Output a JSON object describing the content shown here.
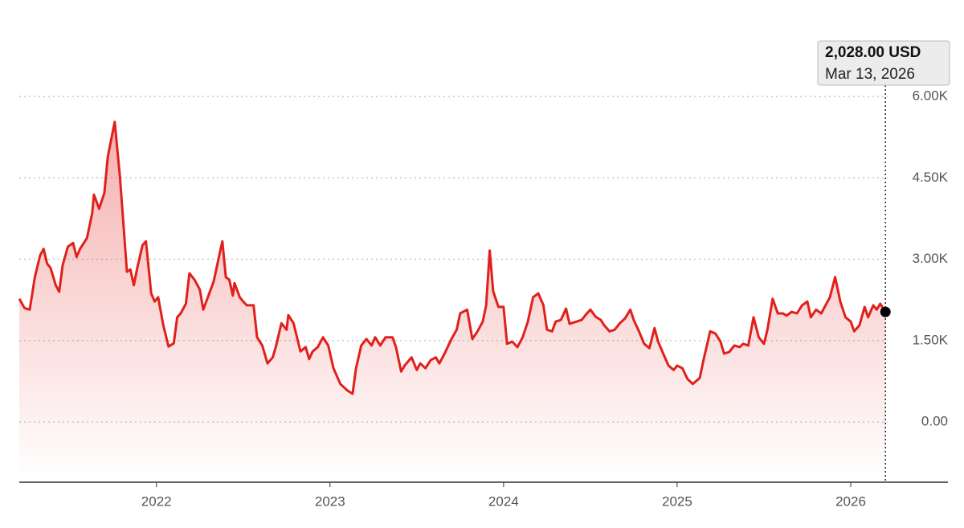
{
  "chart_data": {
    "type": "line",
    "x": [
      2021.21,
      2021.24,
      2021.27,
      2021.3,
      2021.33,
      2021.35,
      2021.37,
      2021.39,
      2021.42,
      2021.44,
      2021.46,
      2021.49,
      2021.52,
      2021.54,
      2021.56,
      2021.6,
      2021.63,
      2021.64,
      2021.67,
      2021.7,
      2021.72,
      2021.76,
      2021.79,
      2021.83,
      2021.85,
      2021.87,
      2021.89,
      2021.92,
      2021.94,
      2021.97,
      2021.99,
      2022.01,
      2022.04,
      2022.07,
      2022.1,
      2022.12,
      2022.14,
      2022.17,
      2022.19,
      2022.22,
      2022.25,
      2022.27,
      2022.3,
      2022.33,
      2022.36,
      2022.38,
      2022.4,
      2022.42,
      2022.44,
      2022.45,
      2022.48,
      2022.5,
      2022.52,
      2022.56,
      2022.58,
      2022.61,
      2022.64,
      2022.67,
      2022.69,
      2022.72,
      2022.75,
      2022.76,
      2022.79,
      2022.81,
      2022.83,
      2022.86,
      2022.88,
      2022.9,
      2022.93,
      2022.96,
      2022.99,
      2023.02,
      2023.06,
      2023.1,
      2023.13,
      2023.15,
      2023.18,
      2023.21,
      2023.24,
      2023.26,
      2023.29,
      2023.32,
      2023.36,
      2023.38,
      2023.41,
      2023.43,
      2023.47,
      2023.5,
      2023.52,
      2023.55,
      2023.58,
      2023.61,
      2023.63,
      2023.66,
      2023.7,
      2023.73,
      2023.75,
      2023.79,
      2023.82,
      2023.85,
      2023.88,
      2023.9,
      2023.92,
      2023.94,
      2023.97,
      2024.0,
      2024.02,
      2024.05,
      2024.08,
      2024.11,
      2024.14,
      2024.17,
      2024.2,
      2024.23,
      2024.25,
      2024.28,
      2024.3,
      2024.33,
      2024.36,
      2024.38,
      2024.42,
      2024.45,
      2024.48,
      2024.5,
      2024.53,
      2024.56,
      2024.58,
      2024.61,
      2024.64,
      2024.67,
      2024.7,
      2024.73,
      2024.75,
      2024.78,
      2024.81,
      2024.84,
      2024.87,
      2024.89,
      2024.92,
      2024.95,
      2024.98,
      2025.0,
      2025.03,
      2025.06,
      2025.09,
      2025.13,
      2025.15,
      2025.19,
      2025.22,
      2025.25,
      2025.27,
      2025.3,
      2025.33,
      2025.36,
      2025.38,
      2025.41,
      2025.44,
      2025.47,
      2025.5,
      2025.52,
      2025.55,
      2025.58,
      2025.61,
      2025.63,
      2025.66,
      2025.69,
      2025.72,
      2025.75,
      2025.77,
      2025.8,
      2025.83,
      2025.86,
      2025.88,
      2025.91,
      2025.94,
      2025.97,
      2026.0,
      2026.02,
      2026.05,
      2026.08,
      2026.1,
      2026.13,
      2026.15,
      2026.17,
      2026.2
    ],
    "series": [
      {
        "color": "#e0201b",
        "values": [
          2270,
          2100,
          2070,
          2670,
          3070,
          3190,
          2920,
          2840,
          2520,
          2400,
          2890,
          3230,
          3300,
          3040,
          3190,
          3390,
          3850,
          4190,
          3930,
          4220,
          4890,
          5530,
          4520,
          2770,
          2810,
          2520,
          2840,
          3260,
          3330,
          2370,
          2220,
          2300,
          1780,
          1390,
          1450,
          1930,
          2000,
          2180,
          2740,
          2620,
          2440,
          2070,
          2330,
          2590,
          3040,
          3330,
          2670,
          2620,
          2330,
          2560,
          2300,
          2220,
          2150,
          2150,
          1560,
          1410,
          1080,
          1190,
          1410,
          1820,
          1700,
          1970,
          1820,
          1560,
          1300,
          1380,
          1160,
          1300,
          1380,
          1560,
          1410,
          990,
          700,
          580,
          520,
          990,
          1410,
          1530,
          1410,
          1560,
          1410,
          1560,
          1560,
          1380,
          930,
          1040,
          1190,
          960,
          1080,
          990,
          1140,
          1190,
          1080,
          1260,
          1530,
          1700,
          2000,
          2070,
          1530,
          1670,
          1850,
          2150,
          3160,
          2410,
          2120,
          2120,
          1440,
          1480,
          1380,
          1560,
          1850,
          2300,
          2370,
          2150,
          1700,
          1670,
          1850,
          1880,
          2090,
          1810,
          1850,
          1880,
          2000,
          2070,
          1940,
          1880,
          1780,
          1670,
          1700,
          1820,
          1910,
          2070,
          1880,
          1670,
          1440,
          1360,
          1730,
          1480,
          1260,
          1040,
          960,
          1040,
          990,
          790,
          700,
          810,
          1110,
          1670,
          1630,
          1480,
          1260,
          1290,
          1410,
          1380,
          1440,
          1410,
          1930,
          1560,
          1440,
          1700,
          2270,
          2000,
          2000,
          1960,
          2030,
          2000,
          2150,
          2220,
          1930,
          2070,
          2000,
          2180,
          2300,
          2670,
          2220,
          1930,
          1850,
          1670,
          1780,
          2120,
          1930,
          2150,
          2070,
          2180,
          2028
        ]
      }
    ],
    "xlim": [
      2021.21,
      2026.56
    ],
    "xticks": [
      2022,
      2023,
      2024,
      2025,
      2026
    ],
    "ylim": [
      -1110,
      6000
    ],
    "yticks": [
      {
        "value": 0,
        "label": "0.00"
      },
      {
        "value": 1500,
        "label": "1.50K"
      },
      {
        "value": 3000,
        "label": "3.00K"
      },
      {
        "value": 4500,
        "label": "4.50K"
      },
      {
        "value": 6000,
        "label": "6.00K"
      }
    ],
    "grid": true,
    "tooltip": {
      "label": "2,028.00 USD",
      "date": "Mar 13, 2026"
    }
  }
}
